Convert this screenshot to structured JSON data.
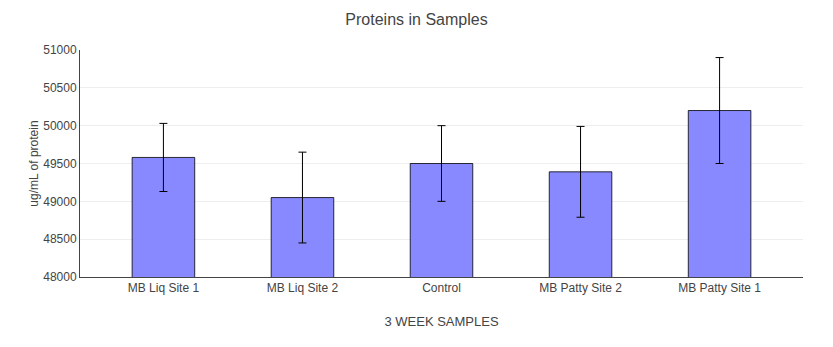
{
  "chart_data": {
    "type": "bar",
    "title": "Proteins in Samples",
    "xlabel": "3 WEEK SAMPLES",
    "ylabel": "ug/mL of protein",
    "categories": [
      "MB Liq Site 1",
      "MB Liq Site 2",
      "Control",
      "MB Patty Site 2",
      "MB Patty Site 1"
    ],
    "values": [
      49580,
      49050,
      49500,
      49390,
      50200
    ],
    "errors": [
      450,
      600,
      500,
      600,
      700
    ],
    "color": "#8888FF",
    "ylim": [
      48000,
      51000
    ],
    "yticks": [
      48000,
      48500,
      49000,
      49500,
      50000,
      50500,
      51000
    ],
    "grid": true
  }
}
